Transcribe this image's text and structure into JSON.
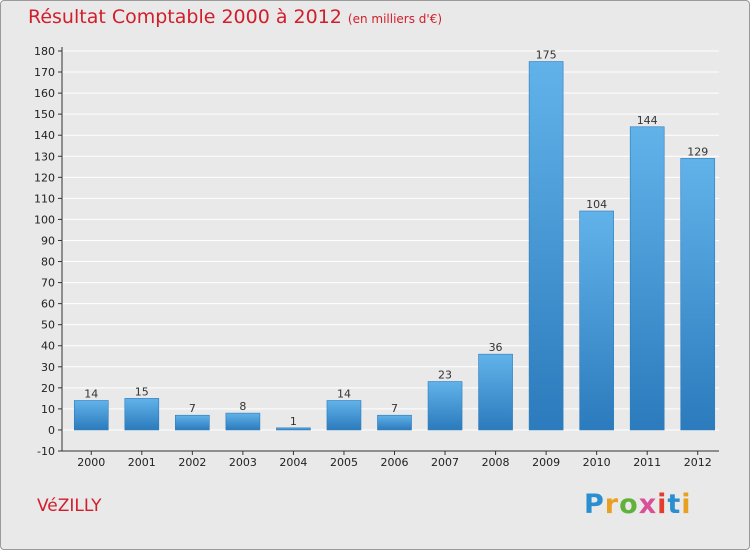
{
  "header": {
    "title": "Résultat Comptable 2000 à 2012",
    "subtitle": "(en milliers d'€)"
  },
  "commune": "VéZILLY",
  "brand": {
    "text": "Proxiti",
    "colors": [
      "#2a8fd0",
      "#e8a020",
      "#62b13a",
      "#d94f9a",
      "#e33d2f",
      "#2a8fd0",
      "#e8a020"
    ]
  },
  "colors": {
    "bar": "#3f97da",
    "bar_light": "#62b2ea",
    "bar_dark": "#2b7bbd",
    "grid": "#ffffff",
    "accent": "#d11e2a"
  },
  "chart_data": {
    "type": "bar",
    "categories": [
      "2000",
      "2001",
      "2002",
      "2003",
      "2004",
      "2005",
      "2006",
      "2007",
      "2008",
      "2009",
      "2010",
      "2011",
      "2012"
    ],
    "values": [
      14,
      15,
      7,
      8,
      1,
      14,
      7,
      23,
      36,
      175,
      104,
      144,
      129
    ],
    "title": "Résultat Comptable 2000 à 2012",
    "subtitle": "(en milliers d'€)",
    "ylim": [
      -10,
      180
    ],
    "yticks": [
      -10,
      0,
      10,
      20,
      30,
      40,
      50,
      60,
      70,
      80,
      90,
      100,
      110,
      120,
      130,
      140,
      150,
      160,
      170,
      180
    ],
    "grid": true,
    "data_labels": true
  }
}
